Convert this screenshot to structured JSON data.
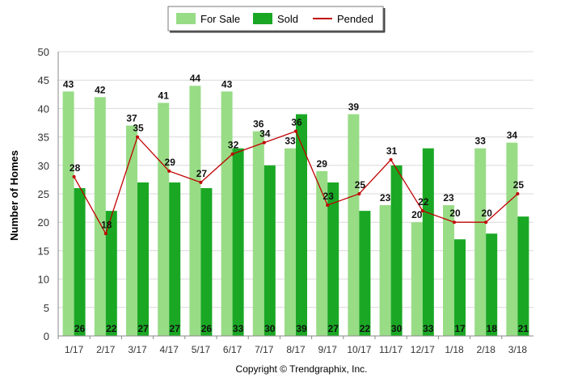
{
  "chart_data": {
    "type": "bar",
    "title": "",
    "xlabel": "",
    "ylabel": "Number of Homes",
    "ylim": [
      0,
      50
    ],
    "yticks": [
      "0",
      "5",
      "10",
      "15",
      "20",
      "25",
      "30",
      "35",
      "40",
      "45",
      "50"
    ],
    "grid": "horizontal",
    "legend_position": "top-center",
    "categories": [
      "1/17",
      "2/17",
      "3/17",
      "4/17",
      "5/17",
      "6/17",
      "7/17",
      "8/17",
      "9/17",
      "10/17",
      "11/17",
      "12/17",
      "1/18",
      "2/18",
      "3/18"
    ],
    "series": [
      {
        "name": "For Sale",
        "type": "bar",
        "color": "#98DC86",
        "values": [
          43,
          42,
          37,
          41,
          44,
          43,
          36,
          33,
          29,
          39,
          23,
          20,
          23,
          33,
          34
        ]
      },
      {
        "name": "Sold",
        "type": "bar",
        "color": "#1AA824",
        "values": [
          26,
          22,
          27,
          27,
          26,
          33,
          30,
          39,
          27,
          22,
          30,
          33,
          17,
          18,
          21
        ]
      },
      {
        "name": "Pended",
        "type": "line",
        "color": "#C00000",
        "values": [
          28,
          18,
          35,
          29,
          27,
          32,
          34,
          36,
          23,
          25,
          31,
          22,
          20,
          20,
          25
        ]
      }
    ]
  },
  "footer": {
    "copyright": "Copyright © Trendgraphix, Inc."
  }
}
